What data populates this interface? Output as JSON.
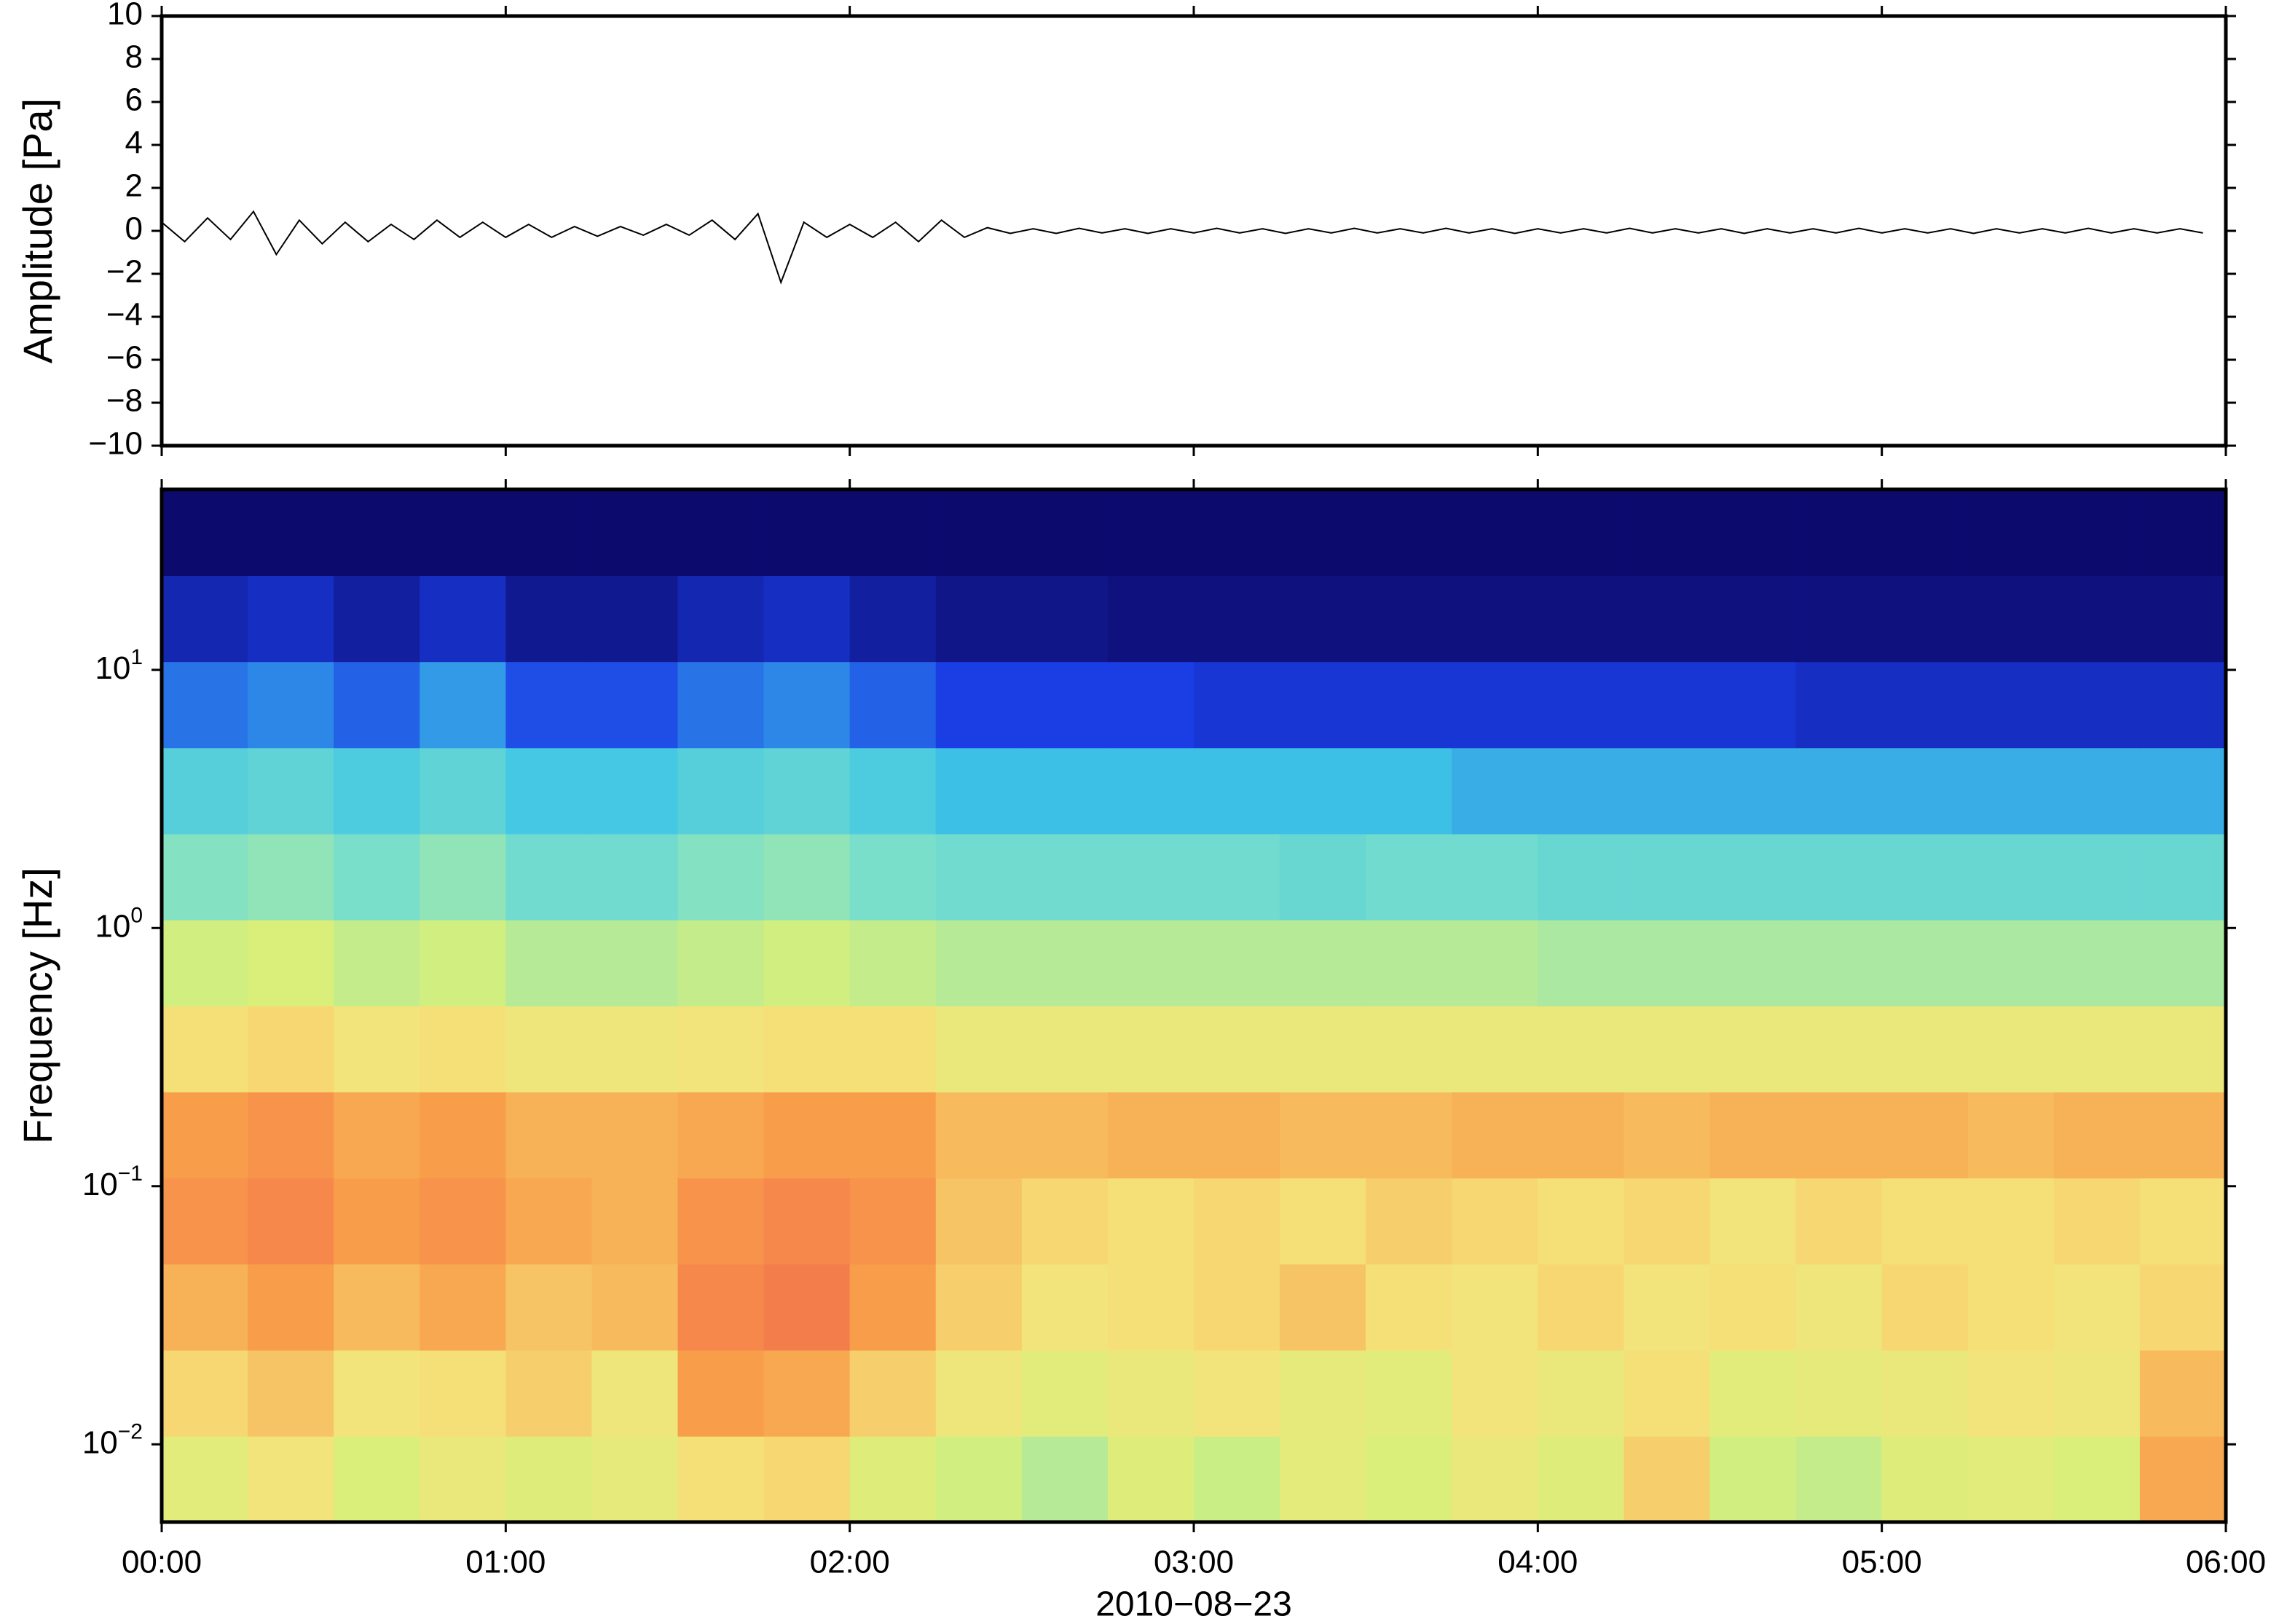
{
  "chart_data": [
    {
      "type": "line",
      "ylabel": "Amplitude [Pa]",
      "color": "#000000",
      "xlim": [
        0,
        360
      ],
      "xticks": [
        0,
        60,
        120,
        180,
        240,
        300,
        360
      ],
      "ylim": [
        -10,
        10
      ],
      "yticks": [
        {
          "value": -10,
          "label": "−10"
        },
        {
          "value": -8,
          "label": "−8"
        },
        {
          "value": -6,
          "label": "−6"
        },
        {
          "value": -4,
          "label": "−4"
        },
        {
          "value": -2,
          "label": "−2"
        },
        0,
        2,
        4,
        6,
        8,
        10
      ],
      "x": [
        0,
        4,
        8,
        12,
        16,
        20,
        24,
        28,
        32,
        36,
        40,
        44,
        48,
        52,
        56,
        60,
        64,
        68,
        72,
        76,
        80,
        84,
        88,
        92,
        96,
        100,
        104,
        108,
        112,
        116,
        120,
        124,
        128,
        132,
        136,
        140,
        144,
        148,
        152,
        156,
        160,
        164,
        168,
        172,
        176,
        180,
        184,
        188,
        192,
        196,
        200,
        204,
        208,
        212,
        216,
        220,
        224,
        228,
        232,
        236,
        240,
        244,
        248,
        252,
        256,
        260,
        264,
        268,
        272,
        276,
        280,
        284,
        288,
        292,
        296,
        300,
        304,
        308,
        312,
        316,
        320,
        324,
        328,
        332,
        336,
        340,
        344,
        348,
        352,
        356
      ],
      "values": [
        0.4,
        -0.5,
        0.6,
        -0.4,
        0.9,
        -1.1,
        0.5,
        -0.6,
        0.4,
        -0.5,
        0.3,
        -0.4,
        0.5,
        -0.3,
        0.4,
        -0.3,
        0.3,
        -0.3,
        0.2,
        -0.25,
        0.2,
        -0.2,
        0.3,
        -0.2,
        0.5,
        -0.4,
        0.8,
        -2.4,
        0.4,
        -0.3,
        0.3,
        -0.3,
        0.4,
        -0.5,
        0.5,
        -0.3,
        0.15,
        -0.12,
        0.1,
        -0.12,
        0.12,
        -0.1,
        0.1,
        -0.12,
        0.1,
        -0.1,
        0.12,
        -0.1,
        0.1,
        -0.12,
        0.1,
        -0.1,
        0.12,
        -0.1,
        0.1,
        -0.1,
        0.12,
        -0.1,
        0.1,
        -0.12,
        0.1,
        -0.1,
        0.1,
        -0.1,
        0.12,
        -0.1,
        0.1,
        -0.1,
        0.1,
        -0.12,
        0.1,
        -0.1,
        0.1,
        -0.1,
        0.12,
        -0.1,
        0.1,
        -0.1,
        0.1,
        -0.12,
        0.1,
        -0.1,
        0.1,
        -0.1,
        0.12,
        -0.1,
        0.1,
        -0.1,
        0.1,
        -0.1
      ]
    },
    {
      "type": "heatmap",
      "ylabel": "Frequency [Hz]",
      "xlabel": "2010−08−23",
      "log_y": true,
      "xlim": [
        0,
        360
      ],
      "xticks": [
        {
          "value": 0,
          "label": "00:00"
        },
        {
          "value": 60,
          "label": "01:00"
        },
        {
          "value": 120,
          "label": "02:00"
        },
        {
          "value": 180,
          "label": "03:00"
        },
        {
          "value": 240,
          "label": "04:00"
        },
        {
          "value": 300,
          "label": "05:00"
        },
        {
          "value": 360,
          "label": "06:00"
        }
      ],
      "ylim": [
        0.005,
        50
      ],
      "yticks": [
        {
          "value": 0.01,
          "label": "10",
          "exponent": "−2"
        },
        {
          "value": 0.1,
          "label": "10",
          "exponent": "−1"
        },
        {
          "value": 1,
          "label": "10",
          "exponent": "0"
        },
        {
          "value": 10,
          "label": "10",
          "exponent": "1"
        }
      ],
      "x": [
        0,
        15,
        30,
        45,
        60,
        75,
        90,
        105,
        120,
        135,
        150,
        165,
        180,
        195,
        210,
        225,
        240,
        255,
        270,
        285,
        300,
        315,
        330,
        345,
        360
      ],
      "y": [
        0.005,
        0.01077,
        0.0232,
        0.05,
        0.1077,
        0.232,
        0.5,
        1.077,
        2.32,
        5,
        10.77,
        23.2,
        50
      ],
      "zlim": [
        0,
        100
      ],
      "colors": [
        "#0d0a6e",
        "#1a3ee6",
        "#3ec5e6",
        "#7de0c8",
        "#d8f07a",
        "#f5e37a",
        "#f8a04a",
        "#f0504e"
      ],
      "z": [
        [
          62,
          70,
          58,
          66,
          60,
          64,
          72,
          74,
          60,
          56,
          52,
          60,
          55,
          63,
          58,
          66,
          60,
          76,
          56,
          54,
          60,
          62,
          58,
          84
        ],
        [
          74,
          78,
          70,
          72,
          76,
          68,
          86,
          84,
          76,
          68,
          62,
          66,
          70,
          64,
          62,
          70,
          66,
          72,
          62,
          64,
          66,
          70,
          68,
          80
        ],
        [
          82,
          86,
          80,
          84,
          78,
          80,
          90,
          92,
          86,
          76,
          70,
          72,
          74,
          78,
          72,
          70,
          74,
          70,
          72,
          68,
          74,
          72,
          70,
          74
        ],
        [
          88,
          90,
          86,
          88,
          84,
          82,
          88,
          90,
          88,
          78,
          74,
          72,
          74,
          72,
          76,
          74,
          72,
          74,
          70,
          74,
          72,
          72,
          74,
          72
        ],
        [
          86,
          88,
          84,
          86,
          82,
          82,
          84,
          86,
          86,
          80,
          80,
          82,
          82,
          80,
          80,
          82,
          82,
          80,
          82,
          82,
          82,
          80,
          82,
          82
        ],
        [
          72,
          74,
          70,
          72,
          68,
          68,
          70,
          72,
          72,
          66,
          66,
          66,
          66,
          66,
          66,
          66,
          66,
          66,
          66,
          66,
          66,
          66,
          66,
          66
        ],
        [
          56,
          58,
          54,
          56,
          52,
          52,
          54,
          56,
          54,
          52,
          52,
          52,
          52,
          52,
          52,
          52,
          50,
          50,
          50,
          50,
          50,
          50,
          50,
          50
        ],
        [
          44,
          46,
          42,
          46,
          40,
          40,
          44,
          46,
          42,
          40,
          40,
          40,
          40,
          38,
          40,
          40,
          38,
          38,
          38,
          38,
          38,
          38,
          38,
          38
        ],
        [
          34,
          36,
          32,
          36,
          30,
          30,
          34,
          36,
          32,
          28,
          28,
          28,
          28,
          28,
          28,
          26,
          26,
          26,
          26,
          26,
          26,
          26,
          26,
          26
        ],
        [
          20,
          22,
          18,
          24,
          16,
          16,
          20,
          22,
          18,
          14,
          14,
          14,
          12,
          12,
          12,
          12,
          12,
          12,
          12,
          10,
          10,
          10,
          10,
          10
        ],
        [
          8,
          10,
          6,
          10,
          4,
          4,
          8,
          10,
          6,
          3,
          3,
          2,
          2,
          2,
          2,
          2,
          2,
          2,
          2,
          2,
          2,
          2,
          2,
          2
        ],
        [
          0,
          0,
          0,
          0,
          0,
          0,
          0,
          0,
          0,
          0,
          0,
          0,
          0,
          0,
          0,
          0,
          0,
          0,
          0,
          0,
          0,
          0,
          0,
          0
        ]
      ]
    }
  ]
}
